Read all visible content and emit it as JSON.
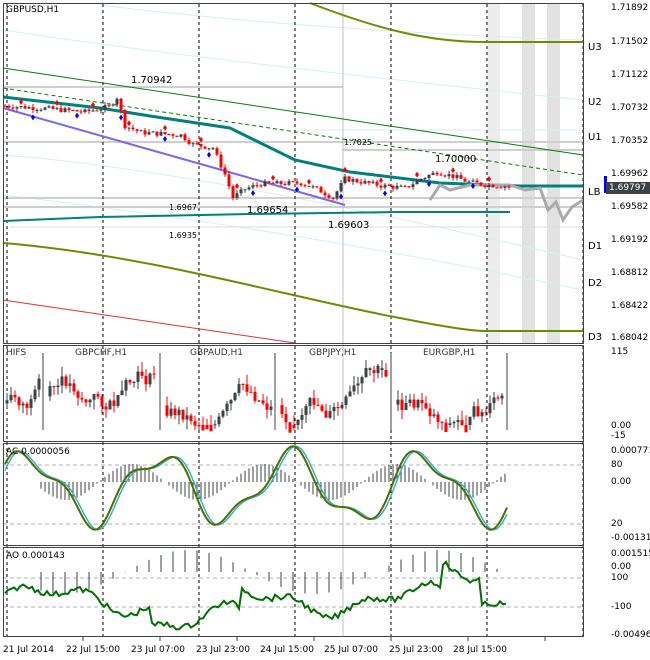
{
  "main": {
    "symbol_title": "GBPUSD,H1",
    "current_price": "1.69797",
    "price_scale": [
      "1.71892",
      "1.71502",
      "1.71122",
      "1.70732",
      "1.70352",
      "1.69962",
      "1.69582",
      "1.69192",
      "1.68812",
      "1.68422",
      "1.68042"
    ],
    "levels": [
      "U3",
      "U2",
      "U1",
      "LB",
      "D1",
      "D2",
      "D3"
    ],
    "annotations": {
      "high_1": "1.70942",
      "mid_1": "1.7025",
      "high_2": "1.70000",
      "level_a": "1.6967",
      "low_1": "1.69654",
      "low_2": "1.69603",
      "level_b": "1.6935"
    },
    "price_path": [
      [
        0,
        1.7075
      ],
      [
        10,
        1.7072
      ],
      [
        20,
        1.7068
      ],
      [
        26,
        1.7074
      ],
      [
        28,
        1.7085
      ],
      [
        30,
        1.7052
      ],
      [
        34,
        1.7044
      ],
      [
        44,
        1.7041
      ],
      [
        47,
        1.703
      ],
      [
        52,
        1.7026
      ],
      [
        55,
        1.6995
      ],
      [
        57,
        1.6968
      ],
      [
        60,
        1.6978
      ],
      [
        64,
        1.6984
      ],
      [
        74,
        1.6985
      ],
      [
        78,
        1.6978
      ],
      [
        82,
        1.6968
      ],
      [
        85,
        1.699
      ],
      [
        94,
        1.6982
      ],
      [
        100,
        1.6979
      ],
      [
        104,
        1.699
      ],
      [
        108,
        1.6998
      ],
      [
        112,
        1.6993
      ],
      [
        116,
        1.6986
      ],
      [
        120,
        1.6983
      ],
      [
        126,
        1.6981
      ]
    ]
  },
  "ifs_window": {
    "title": "HIFS",
    "panels": [
      "GBPCHF,H1",
      "GBPAUD,H1",
      "GBPJPY,H1",
      "EURGBP,H1"
    ],
    "scale": [
      "115",
      "0.00",
      "-15"
    ]
  },
  "ac_window": {
    "title": "AC 0.0000056",
    "scale": [
      "0.000771",
      "80",
      "0.00",
      "20",
      "-0.001311"
    ]
  },
  "ao_window": {
    "title": "AO 0.000143",
    "scale": [
      "0.001515",
      "0.00",
      "100",
      "-100",
      "-0.004966"
    ]
  },
  "time_axis": [
    "21 Jul 2014",
    "22 Jul 15:00",
    "23 Jul 07:00",
    "23 Jul 23:00",
    "24 Jul 15:00",
    "25 Jul 07:00",
    "25 Jul 23:00",
    "28 Jul 15:00"
  ],
  "colors": {
    "bull": "#3c4247",
    "bear": "#ff0000",
    "teal": "#00807f",
    "green": "#008000",
    "olive": "#6b8e00",
    "purple": "#7b68ee",
    "grid": "#000000"
  }
}
